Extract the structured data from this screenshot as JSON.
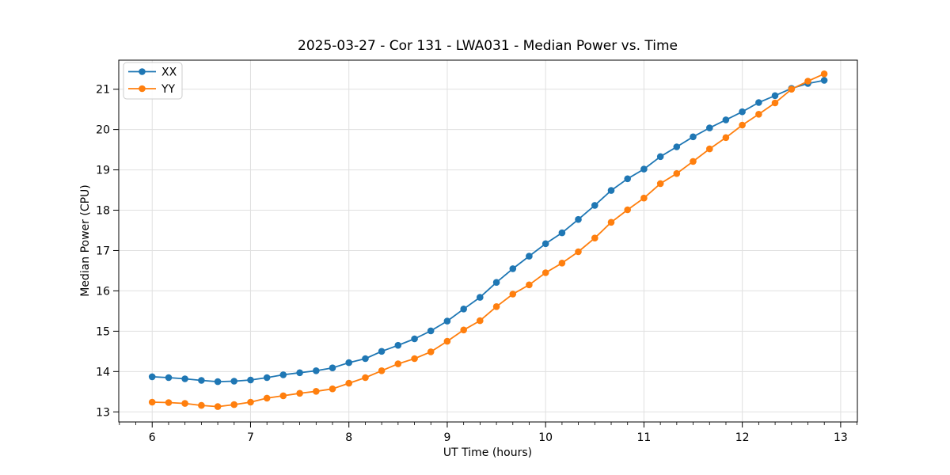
{
  "chart_data": {
    "type": "line",
    "title": "2025-03-27 - Cor 131 - LWA031 - Median Power vs. Time",
    "xlabel": "UT Time (hours)",
    "ylabel": "Median Power (CPU)",
    "xlim": [
      5.66,
      13.17
    ],
    "ylim": [
      12.75,
      21.72
    ],
    "x_ticks": [
      6,
      7,
      8,
      9,
      10,
      11,
      12,
      13
    ],
    "y_ticks": [
      13,
      14,
      15,
      16,
      17,
      18,
      19,
      20,
      21
    ],
    "x_minor_step": 0.16667,
    "grid": true,
    "grid_color": "#e0e0e0",
    "legend_position": "upper-left",
    "x": [
      6.0,
      6.167,
      6.333,
      6.5,
      6.667,
      6.833,
      7.0,
      7.167,
      7.333,
      7.5,
      7.667,
      7.833,
      8.0,
      8.167,
      8.333,
      8.5,
      8.667,
      8.833,
      9.0,
      9.167,
      9.333,
      9.5,
      9.667,
      9.833,
      10.0,
      10.167,
      10.333,
      10.5,
      10.667,
      10.833,
      11.0,
      11.167,
      11.333,
      11.5,
      11.667,
      11.833,
      12.0,
      12.167,
      12.333,
      12.5,
      12.667,
      12.833
    ],
    "series": [
      {
        "name": "XX",
        "color": "#1f77b4",
        "values": [
          13.87,
          13.85,
          13.82,
          13.78,
          13.75,
          13.76,
          13.79,
          13.85,
          13.92,
          13.97,
          14.02,
          14.09,
          14.22,
          14.32,
          14.5,
          14.65,
          14.81,
          15.01,
          15.25,
          15.55,
          15.84,
          16.21,
          16.55,
          16.86,
          17.17,
          17.44,
          17.77,
          18.12,
          18.49,
          18.78,
          19.02,
          19.33,
          19.57,
          19.82,
          20.04,
          20.24,
          20.44,
          20.67,
          20.84,
          21.02,
          21.14,
          21.22
        ]
      },
      {
        "name": "YY",
        "color": "#ff7f0e",
        "values": [
          13.24,
          13.23,
          13.21,
          13.16,
          13.13,
          13.18,
          13.24,
          13.34,
          13.4,
          13.46,
          13.51,
          13.57,
          13.71,
          13.85,
          14.02,
          14.19,
          14.32,
          14.49,
          14.75,
          15.03,
          15.26,
          15.61,
          15.92,
          16.15,
          16.45,
          16.69,
          16.97,
          17.31,
          17.7,
          18.01,
          18.3,
          18.66,
          18.91,
          19.21,
          19.52,
          19.8,
          20.11,
          20.38,
          20.66,
          21.0,
          21.2,
          21.38
        ]
      }
    ]
  }
}
